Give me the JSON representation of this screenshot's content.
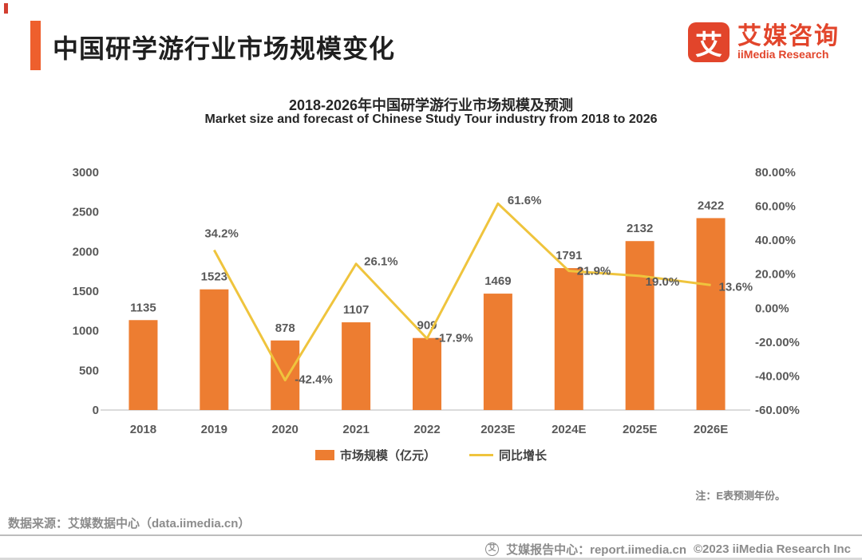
{
  "header": {
    "title": "中国研学游行业市场规模变化"
  },
  "logo": {
    "symbol": "艾",
    "name_cn": "艾媒咨询",
    "name_en": "iiMedia Research",
    "brand_color": "#e2452b"
  },
  "chart_data": {
    "type": "bar",
    "subtype": "bar+line combo, dual axis",
    "title": "2018-2026年中国研学游行业市场规模及预测",
    "subtitle": "Market size and forecast of Chinese Study Tour industry from 2018 to 2026",
    "categories": [
      "2018",
      "2019",
      "2020",
      "2021",
      "2022",
      "2023E",
      "2024E",
      "2025E",
      "2026E"
    ],
    "series": [
      {
        "name": "市场规模（亿元）",
        "type": "bar",
        "axis": "left",
        "color": "#ED7D31",
        "values": [
          1135,
          1523,
          878,
          1107,
          909,
          1469,
          1791,
          2132,
          2422
        ],
        "labels": [
          "1135",
          "1523",
          "878",
          "1107",
          "909",
          "1469",
          "1791",
          "2132",
          "2422"
        ]
      },
      {
        "name": "同比增长",
        "type": "line",
        "axis": "right",
        "color": "#EFC43D",
        "values": [
          null,
          34.2,
          -42.4,
          26.1,
          -17.9,
          61.6,
          21.9,
          19.0,
          13.6
        ],
        "labels": [
          null,
          "34.2%",
          "-42.4%",
          "26.1%",
          "-17.9%",
          "61.6%",
          "21.9%",
          "19.0%",
          "13.6%"
        ]
      }
    ],
    "left_axis": {
      "min": 0,
      "max": 3000,
      "step": 500,
      "ticks": [
        "0",
        "500",
        "1000",
        "1500",
        "2000",
        "2500",
        "3000"
      ]
    },
    "right_axis": {
      "min": -60,
      "max": 80,
      "step": 20,
      "ticks": [
        "-60.00%",
        "-40.00%",
        "-20.00%",
        "0.00%",
        "20.00%",
        "40.00%",
        "60.00%",
        "80.00%"
      ]
    },
    "grid": false,
    "legend_position": "bottom-center",
    "legend": [
      {
        "label": "市场规模（亿元）",
        "color": "#ED7D31",
        "shape": "square"
      },
      {
        "label": "同比增长",
        "color": "#EFC43D",
        "shape": "line"
      }
    ],
    "note": "注：E表预测年份。"
  },
  "footer": {
    "source": "数据来源：艾媒数据中心（data.iimedia.cn）",
    "report_center": "艾媒报告中心：report.iimedia.cn",
    "copyright": "©2023  iiMedia Research  Inc"
  }
}
